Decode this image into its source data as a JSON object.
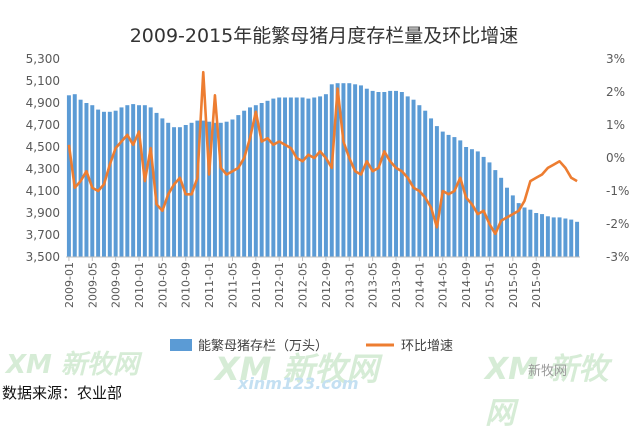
{
  "chart_data": {
    "type": "bar+line",
    "title": "2009-2015年能繁母猪月度存栏量及环比增速",
    "bar_series": {
      "name": "能繁母猪存栏（万头）",
      "color": "#5b9bd5",
      "values": [
        4970,
        4980,
        4930,
        4900,
        4880,
        4840,
        4820,
        4820,
        4830,
        4860,
        4880,
        4890,
        4880,
        4880,
        4860,
        4810,
        4760,
        4720,
        4680,
        4680,
        4700,
        4720,
        4740,
        4740,
        4730,
        4720,
        4720,
        4730,
        4750,
        4790,
        4830,
        4860,
        4880,
        4900,
        4920,
        4940,
        4950,
        4950,
        4950,
        4950,
        4950,
        4940,
        4950,
        4960,
        4980,
        5070,
        5080,
        5080,
        5080,
        5070,
        5060,
        5030,
        5010,
        5000,
        5000,
        5010,
        5010,
        5000,
        4960,
        4930,
        4880,
        4830,
        4760,
        4690,
        4640,
        4610,
        4590,
        4560,
        4500,
        4480,
        4460,
        4410,
        4360,
        4290,
        4220,
        4130,
        4060,
        3990,
        3950,
        3930,
        3900,
        3890,
        3870,
        3860,
        3860,
        3850,
        3840,
        3820
      ]
    },
    "line_series": {
      "name": "环比增速",
      "color": "#ed7d31",
      "values": [
        0.4,
        -0.9,
        -0.7,
        -0.4,
        -0.9,
        -1.0,
        -0.8,
        -0.2,
        0.3,
        0.5,
        0.7,
        0.4,
        0.8,
        -0.7,
        0.3,
        -1.4,
        -1.6,
        -1.1,
        -0.8,
        -0.6,
        -1.1,
        -1.1,
        -0.6,
        2.6,
        -0.5,
        1.9,
        -0.3,
        -0.5,
        -0.4,
        -0.3,
        0.0,
        0.6,
        1.4,
        0.5,
        0.6,
        0.4,
        0.5,
        0.4,
        0.3,
        0.0,
        -0.1,
        0.1,
        0.0,
        0.2,
        0.0,
        -0.3,
        2.1,
        0.5,
        0.0,
        -0.4,
        -0.5,
        -0.1,
        -0.4,
        -0.3,
        0.2,
        -0.1,
        -0.3,
        -0.4,
        -0.6,
        -0.9,
        -1.0,
        -1.2,
        -1.5,
        -2.1,
        -1.0,
        -1.1,
        -1.0,
        -0.6,
        -1.2,
        -1.4,
        -1.7,
        -1.6,
        -2.0,
        -2.3,
        -1.9,
        -1.8,
        -1.7,
        -1.6,
        -1.3,
        -0.7,
        -0.6,
        -0.5,
        -0.3,
        -0.2,
        -0.1,
        -0.3,
        -0.6,
        -0.7
      ]
    },
    "y_left": {
      "min": 3500,
      "max": 5300,
      "ticks": [
        "3,500",
        "3,700",
        "3,900",
        "4,100",
        "4,300",
        "4,500",
        "4,700",
        "4,900",
        "5,100",
        "5,300"
      ]
    },
    "y_right": {
      "min": -3,
      "max": 3,
      "ticks": [
        "-3%",
        "-2%",
        "-1%",
        "0%",
        "1%",
        "2%",
        "3%"
      ]
    },
    "x_labels": [
      "2009-01",
      "2009-05",
      "2009-09",
      "2010-01",
      "2010-05",
      "2010-09",
      "2011-01",
      "2011-05",
      "2011-09",
      "2012-01",
      "2012-05",
      "2012-09",
      "2013-01",
      "2013-05",
      "2013-09",
      "2014-01",
      "2014-05",
      "2014-09",
      "2015-01",
      "2015-05",
      "2015-09"
    ],
    "grid": false,
    "legend_position": "bottom"
  },
  "source_note": "数据来源：农业部",
  "watermarks": {
    "left": "XM 新牧网",
    "center": "XM 新牧网",
    "center_url": "xinm123.com",
    "right": "XM 新牧网",
    "right_small": "新牧网"
  }
}
